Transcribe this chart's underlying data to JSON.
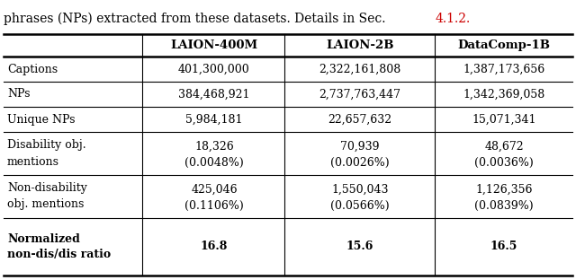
{
  "caption_text": "phrases (NPs) extracted from these datasets. Details in Sec. ",
  "caption_ref": "4.1.2.",
  "columns": [
    "",
    "LAION-400M",
    "LAION-2B",
    "DataComp-1B"
  ],
  "rows": [
    {
      "label": "Captions",
      "label_bold": false,
      "values": [
        "401,300,000",
        "2,322,161,808",
        "1,387,173,656"
      ],
      "values_sub": [
        "",
        "",
        ""
      ],
      "bold_values": false
    },
    {
      "label": "NPs",
      "label_bold": false,
      "values": [
        "384,468,921",
        "2,737,763,447",
        "1,342,369,058"
      ],
      "values_sub": [
        "",
        "",
        ""
      ],
      "bold_values": false
    },
    {
      "label": "Unique NPs",
      "label_bold": false,
      "values": [
        "5,984,181",
        "22,657,632",
        "15,071,341"
      ],
      "values_sub": [
        "",
        "",
        ""
      ],
      "bold_values": false
    },
    {
      "label": "Disability obj.\nmentions",
      "label_bold": false,
      "values": [
        "18,326",
        "70,939",
        "48,672"
      ],
      "values_sub": [
        "(0.0048%)",
        "(0.0026%)",
        "(0.0036%)"
      ],
      "bold_values": false
    },
    {
      "label": "Non-disability\nobj. mentions",
      "label_bold": false,
      "values": [
        "425,046",
        "1,550,043",
        "1,126,356"
      ],
      "values_sub": [
        "(0.1106%)",
        "(0.0566%)",
        "(0.0839%)"
      ],
      "bold_values": false
    },
    {
      "label": "Normalized\nnon-dis/dis ratio",
      "label_bold": true,
      "values": [
        "16.8",
        "15.6",
        "16.5"
      ],
      "values_sub": [
        "",
        "",
        ""
      ],
      "bold_values": true
    }
  ],
  "bg_color": "#ffffff",
  "text_color": "#000000",
  "caption_ref_color": "#cc0000",
  "font_size": 9.0,
  "header_font_size": 9.5,
  "caption_font_size": 10.0
}
